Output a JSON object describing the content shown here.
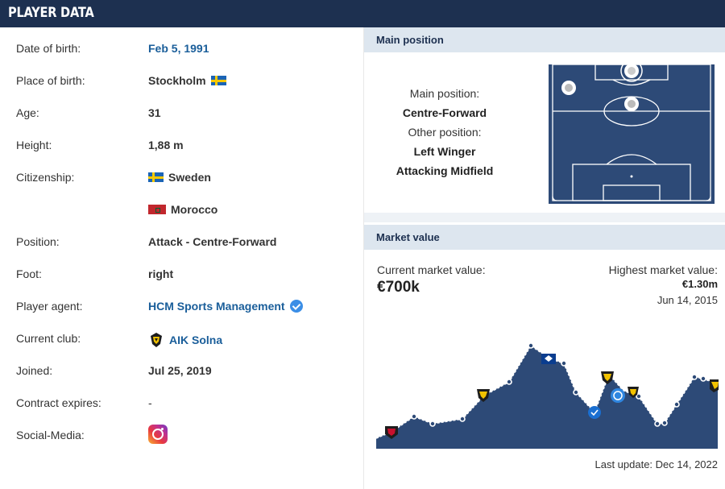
{
  "header": {
    "title": "PLAYER DATA"
  },
  "player_data": {
    "rows": [
      {
        "label": "Date of birth:",
        "value": "Feb 5, 1991"
      },
      {
        "label": "Place of birth:",
        "value": "Stockholm",
        "icon": "sweden-flag"
      },
      {
        "label": "Age:",
        "value": "31"
      },
      {
        "label": "Height:",
        "value": "1,88 m"
      },
      {
        "label": "Citizenship:",
        "value": "Sweden",
        "icon": "sweden-flag"
      },
      {
        "label": "",
        "value": "Morocco",
        "icon": "morocco-flag"
      },
      {
        "label": "Position:",
        "value": "Attack - Centre-Forward"
      },
      {
        "label": "Foot:",
        "value": "right"
      },
      {
        "label": "Player agent:",
        "value": "HCM Sports Management",
        "icon": "verified-icon"
      },
      {
        "label": "Current club:",
        "value": "AIK Solna",
        "icon": "club-crest-icon"
      },
      {
        "label": "Joined:",
        "value": "Jul 25, 2019"
      },
      {
        "label": "Contract expires:",
        "value": "-"
      },
      {
        "label": "Social-Media:",
        "value": "",
        "icon": "instagram-icon"
      }
    ]
  },
  "main_position": {
    "header": "Main position",
    "main_label": "Main position:",
    "main_value": "Centre-Forward",
    "other_label": "Other position:",
    "other_values": [
      "Left Winger",
      "Attacking Midfield"
    ]
  },
  "market_value": {
    "header": "Market value",
    "current_label": "Current market value:",
    "current_value": "€700k",
    "highest_label": "Highest market value:",
    "highest_value": "€1.30m",
    "highest_date": "Jun 14, 2015",
    "last_update": "Last update: Dec 14, 2022"
  },
  "colors": {
    "header_bg": "#1d3050",
    "link": "#1a5e9a",
    "pitch": "#2d4a77",
    "box_header_bg": "#dde6ef"
  }
}
